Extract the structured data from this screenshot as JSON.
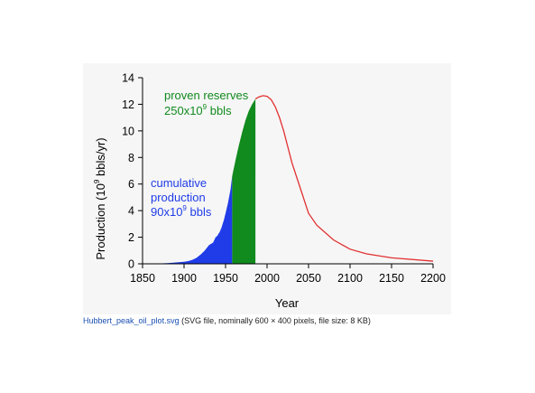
{
  "chart_data": {
    "type": "area",
    "xlabel": "Year",
    "ylabel_parts": [
      "Production (10",
      "9",
      " bbls/yr)"
    ],
    "xlim": [
      1850,
      2200
    ],
    "ylim": [
      0,
      14
    ],
    "x_ticks": [
      1850,
      1900,
      1950,
      2000,
      2050,
      2100,
      2150,
      2200
    ],
    "y_ticks": [
      0,
      2,
      4,
      6,
      8,
      10,
      12,
      14
    ],
    "grid": false,
    "colors": {
      "cumulative": "#1f3ce8",
      "reserves": "#118a1e",
      "curve": "#e23030"
    },
    "annotations": {
      "reserves": {
        "line1": "proven reserves",
        "line2_pre": "250x10",
        "line2_sup": "9",
        "line2_post": " bbls"
      },
      "cumulative": {
        "line1": "cumulative",
        "line2": "production",
        "line3_pre": "90x10",
        "line3_sup": "9",
        "line3_post": " bbls"
      }
    },
    "series": [
      {
        "fill_color": "#1f3ce8",
        "x": [
          1860,
          1880,
          1900,
          1905,
          1910,
          1915,
          1920,
          1925,
          1930,
          1935,
          1938,
          1940,
          1943,
          1945,
          1948,
          1950,
          1953,
          1956,
          1958
        ],
        "values": [
          0.0,
          0.05,
          0.15,
          0.2,
          0.3,
          0.45,
          0.7,
          1.0,
          1.4,
          1.6,
          2.0,
          2.1,
          2.4,
          2.7,
          3.3,
          3.8,
          4.6,
          5.6,
          6.6
        ]
      },
      {
        "fill_color": "#118a1e",
        "x": [
          1958,
          1962,
          1966,
          1970,
          1974,
          1978,
          1982,
          1986
        ],
        "values": [
          6.6,
          7.8,
          8.9,
          9.9,
          10.8,
          11.5,
          12.0,
          12.4
        ]
      },
      {
        "line_color": "#e23030",
        "x": [
          1986,
          1990,
          1995,
          2000,
          2005,
          2010,
          2015,
          2020,
          2025,
          2030,
          2040,
          2050,
          2060,
          2080,
          2100,
          2120,
          2150,
          2200
        ],
        "values": [
          12.4,
          12.55,
          12.65,
          12.6,
          12.35,
          11.8,
          11.0,
          10.0,
          8.8,
          7.6,
          5.7,
          3.8,
          2.9,
          1.8,
          1.1,
          0.75,
          0.45,
          0.2
        ]
      }
    ]
  },
  "caption": {
    "file_link": "Hubbert_peak_oil_plot.svg",
    "info": " (SVG file, nominally 600 × 400 pixels, file size: 8 KB)"
  }
}
